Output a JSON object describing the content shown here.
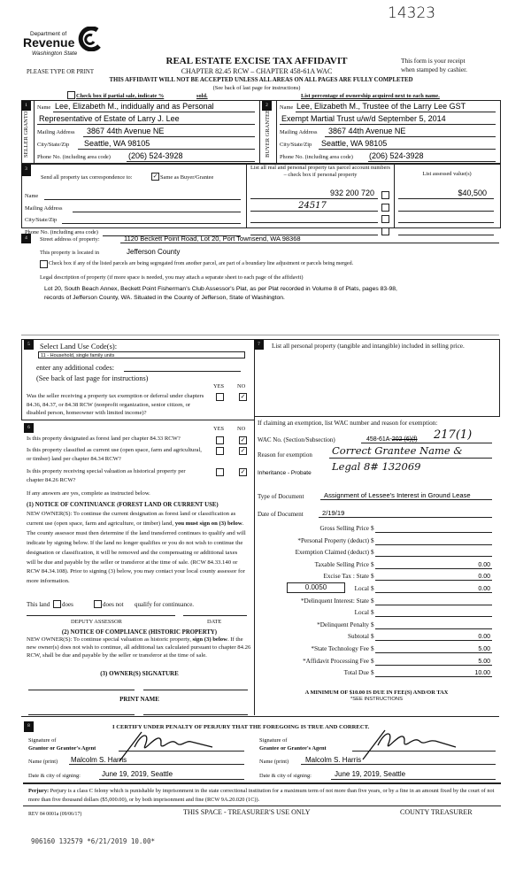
{
  "header": {
    "handwritten_number": "14323",
    "logo_line1": "Department of",
    "logo_line2": "Revenue",
    "logo_line3": "Washington State",
    "title": "REAL ESTATE EXCISE TAX AFFIDAVIT",
    "please_type": "PLEASE TYPE OR PRINT",
    "chapter": "CHAPTER 82.45 RCW – CHAPTER 458-61A WAC",
    "receipt_line1": "This form is your receipt",
    "receipt_line2": "when stamped by cashier.",
    "warning": "THIS AFFIDAVIT WILL NOT BE ACCEPTED UNLESS ALL AREAS ON ALL PAGES ARE FULLY COMPLETED",
    "see_back": "(See back of last page for instructions)",
    "partial_sale": "Check box if partial sale, indicate %",
    "sold": "sold.",
    "percentage_note": "List percentage of ownership acquired next to each name."
  },
  "section1": {
    "number": "1",
    "side_label": "SELLER GRANTOR",
    "name_label": "Name",
    "name_line1": "Lee, Elizabeth M., indidually and as Personal",
    "name_line2": "Representative of Estate of Larry J. Lee",
    "mailing_label": "Mailing Address",
    "mailing": "3867 44th Avenue NE",
    "city_label": "City/State/Zip",
    "city": "Seattle, WA  98105",
    "phone_label": "Phone No. (including area code)",
    "phone": "(206) 524-3928"
  },
  "section2": {
    "number": "2",
    "side_label": "BUYER GRANTEE",
    "name_label": "Name",
    "name_line1": "Lee, Elizabeth M., Trustee of the Larry Lee GST",
    "name_line2": "Exempt Martial Trust u/w/d September 5, 2014",
    "mailing_label": "Mailing Address",
    "mailing": "3867 44th Avenue NE",
    "city_label": "City/State/Zip",
    "city": "Seattle, WA  98105",
    "phone_label": "Phone No. (including area code)",
    "phone": "(206) 524-3928"
  },
  "section3": {
    "number": "3",
    "send_to": "Send all property tax correspondence to:",
    "same_as": "Same as Buyer/Grantee",
    "same_as_checked": true,
    "name_label": "Name",
    "mailing_label": "Mailing Address",
    "city_label": "City/State/Zip",
    "phone_label": "Phone No. (including area code)",
    "parcel_header": "List all real and personal property tax parcel account numbers – check box if personal property",
    "assessed_header": "List assessed value(s)",
    "parcels": [
      "932 200 720",
      "24517",
      "",
      ""
    ],
    "assessed_values": [
      "$40,500",
      "",
      "",
      ""
    ]
  },
  "section4": {
    "number": "4",
    "street_label": "Street address of property:",
    "street": "1120 Beckett Point Road, Lot 20, Port Townsend, WA  98368",
    "located_label": "This property is located in",
    "county": "Jefferson County",
    "segregated_note": "Check box if any of the listed parcels are being segregated from another parcel, are part of a boundary line adjustment or parcels being merged.",
    "legal_label": "Legal description of property (if more space is needed, you may attach a separate sheet to each page of the affidavit)",
    "legal_line1": "Lot 20, South Beach Annex, Beckett Point Fisherman's Club Assessor's Plat, as per Plat recorded in Volume 8 of Plats, pages 83-98,",
    "legal_line2": "records of Jefferson County, WA.  Situated in the County of Jefferson, State of Washington."
  },
  "section5": {
    "number": "5",
    "select_label": "Select Land Use Code(s):",
    "land_use_code": "11 - Household, single family units",
    "additional_codes": "enter any additional codes:",
    "see_back": "(See back of last page for instructions)",
    "yes": "YES",
    "no": "NO",
    "question": "Was the seller receiving a property tax exemption or deferral under chapters 84.36, 84.37, or 84.38 RCW (nonprofit organization, senior citizen, or disabled person, homeowner with limited income)?",
    "answer": "NO"
  },
  "section6": {
    "number": "6",
    "yes": "YES",
    "no": "NO",
    "questions": [
      {
        "text": "Is this property designated as forest land per chapter 84.33 RCW?",
        "answer": "NO"
      },
      {
        "text": "Is this property classified as current use (open space, farm and agricultural, or timber) land per chapter 84.34 RCW?",
        "answer": "NO"
      },
      {
        "text": "Is this property receiving special valuation as historical property per chapter 84.26 RCW?",
        "answer": "NO"
      }
    ],
    "if_yes": "If any answers are yes, complete as instructed below.",
    "notice1_title": "(1) NOTICE OF CONTINUANCE  (FOREST LAND OR CURRENT USE)",
    "notice1_pre": "NEW OWNER(S): To continue the current designation as forest land or classification as current use (open space, farm and agriculture, or timber) land,",
    "notice1_bold": "you must sign on (3) below",
    "notice1_post": ". The county assessor must then determine if the land transferred continues to qualify and will indicate by signing below. If the land no longer qualifies or you do not wish to continue the designation or classification, it will be removed and the compensating or additional taxes will be due and payable by the seller or transferor at the time of sale. (RCW 84.33.140 or RCW 84.34.108). Prior to signing (3) below, you may contact your local county assessor for more information.",
    "this_land": "This land",
    "does": "does",
    "does_not": "does not",
    "qualify": "qualify for continuance.",
    "deputy_assessor": "DEPUTY ASSESSOR",
    "date": "DATE",
    "notice2_title": "(2) NOTICE OF COMPLIANCE (HISTORIC PROPERTY)",
    "notice2_pre": "NEW OWNER(S): To continue special valuation as historic property,",
    "notice2_bold": "sign (3) below",
    "notice2_post": ". If the new owner(s) does not wish to continue, all additional tax calculated pursuant to chapter 84.26 RCW, shall be due and payable by the seller or transferor at the time of sale.",
    "owner_signature": "(3)  OWNER(S) SIGNATURE",
    "print_name": "PRINT NAME"
  },
  "section7": {
    "number": "7",
    "personal_property": "List all  personal property (tangible and intangible) included in selling price.",
    "exemption_intro": "If claiming an exemption, list WAC number and reason for exemption:",
    "wac_label": "WAC No. (Section/Subsection)",
    "wac_typed": "458-61A-",
    "wac_struck": "202 (6)(f)",
    "wac_handwritten": "217(1)",
    "reason_label": "Reason for exemption",
    "reason_handwritten": "Correct Grantee Name &",
    "reason_typed": "Inheritance - Probate",
    "reason_handwritten2": "Legal  8# 132069",
    "doc_type_label": "Type of Document",
    "doc_type": "Assignment of Lessee's Interest in Ground Lease",
    "doc_date_label": "Date of Document",
    "doc_date": "2/19/19"
  },
  "tax": {
    "rows": [
      {
        "label": "Gross Selling Price",
        "value": ""
      },
      {
        "label": "*Personal Property (deduct)",
        "value": ""
      },
      {
        "label": "Exemption Claimed (deduct)",
        "value": ""
      },
      {
        "label": "Taxable Selling Price",
        "value": "0.00"
      },
      {
        "label": "Excise Tax : State",
        "value": "0.00"
      },
      {
        "label": "Local",
        "value": "0.00"
      },
      {
        "label": "*Delinquent Interest: State",
        "value": ""
      },
      {
        "label": "Local",
        "value": ""
      },
      {
        "label": "*Delinquent Penalty",
        "value": ""
      },
      {
        "label": "Subtotal",
        "value": "0.00"
      },
      {
        "label": "*State Technology Fee",
        "value": "5.00"
      },
      {
        "label": "*Affidavit Processing Fee",
        "value": "5.00"
      },
      {
        "label": "Total Due",
        "value": "10.00"
      }
    ],
    "currency": "$",
    "local_rate": "0.0050",
    "minimum_note": "A MINIMUM OF $10.00 IS DUE IN FEE(S) AND/OR TAX",
    "see_instructions": "*SEE INSTRUCTIONS"
  },
  "section8": {
    "number": "8",
    "certify": "I CERTIFY UNDER PENALTY OF PERJURY THAT THE FOREGOING IS TRUE AND CORRECT.",
    "grantor_sig_label1": "Signature of",
    "grantor_sig_label2": "Grantor or Grantor's Agent",
    "grantee_sig_label1": "Signature of",
    "grantee_sig_label2": "Grantee or Grantee's Agent",
    "name_label": "Name (print)",
    "grantor_name": "Malcolm S. Harris",
    "grantee_name": "Malcolm S. Harris",
    "date_label": "Date & city of signing:",
    "grantor_date": "June 19, 2019,  Seattle",
    "grantee_date": "June 19, 2019,  Seattle"
  },
  "footer": {
    "perjury_bold": "Perjury:",
    "perjury_text": " Perjury is a class C felony which is punishable by imprisonment in the state correctional institution for a maximum term of not more than five years, or by a fine in an amount fixed by the court of not more than five thousand dollars ($5,000.00), or by both imprisonment and fine (RCW 9A.20.020 (1C)).",
    "rev": "REV 84 0001a (09/06/17)",
    "treasurer_space": "THIS SPACE - TREASURER'S USE ONLY",
    "county_treasurer": "COUNTY TREASURER",
    "stamp": "906160 132579 *6/21/2019 10.00*"
  }
}
